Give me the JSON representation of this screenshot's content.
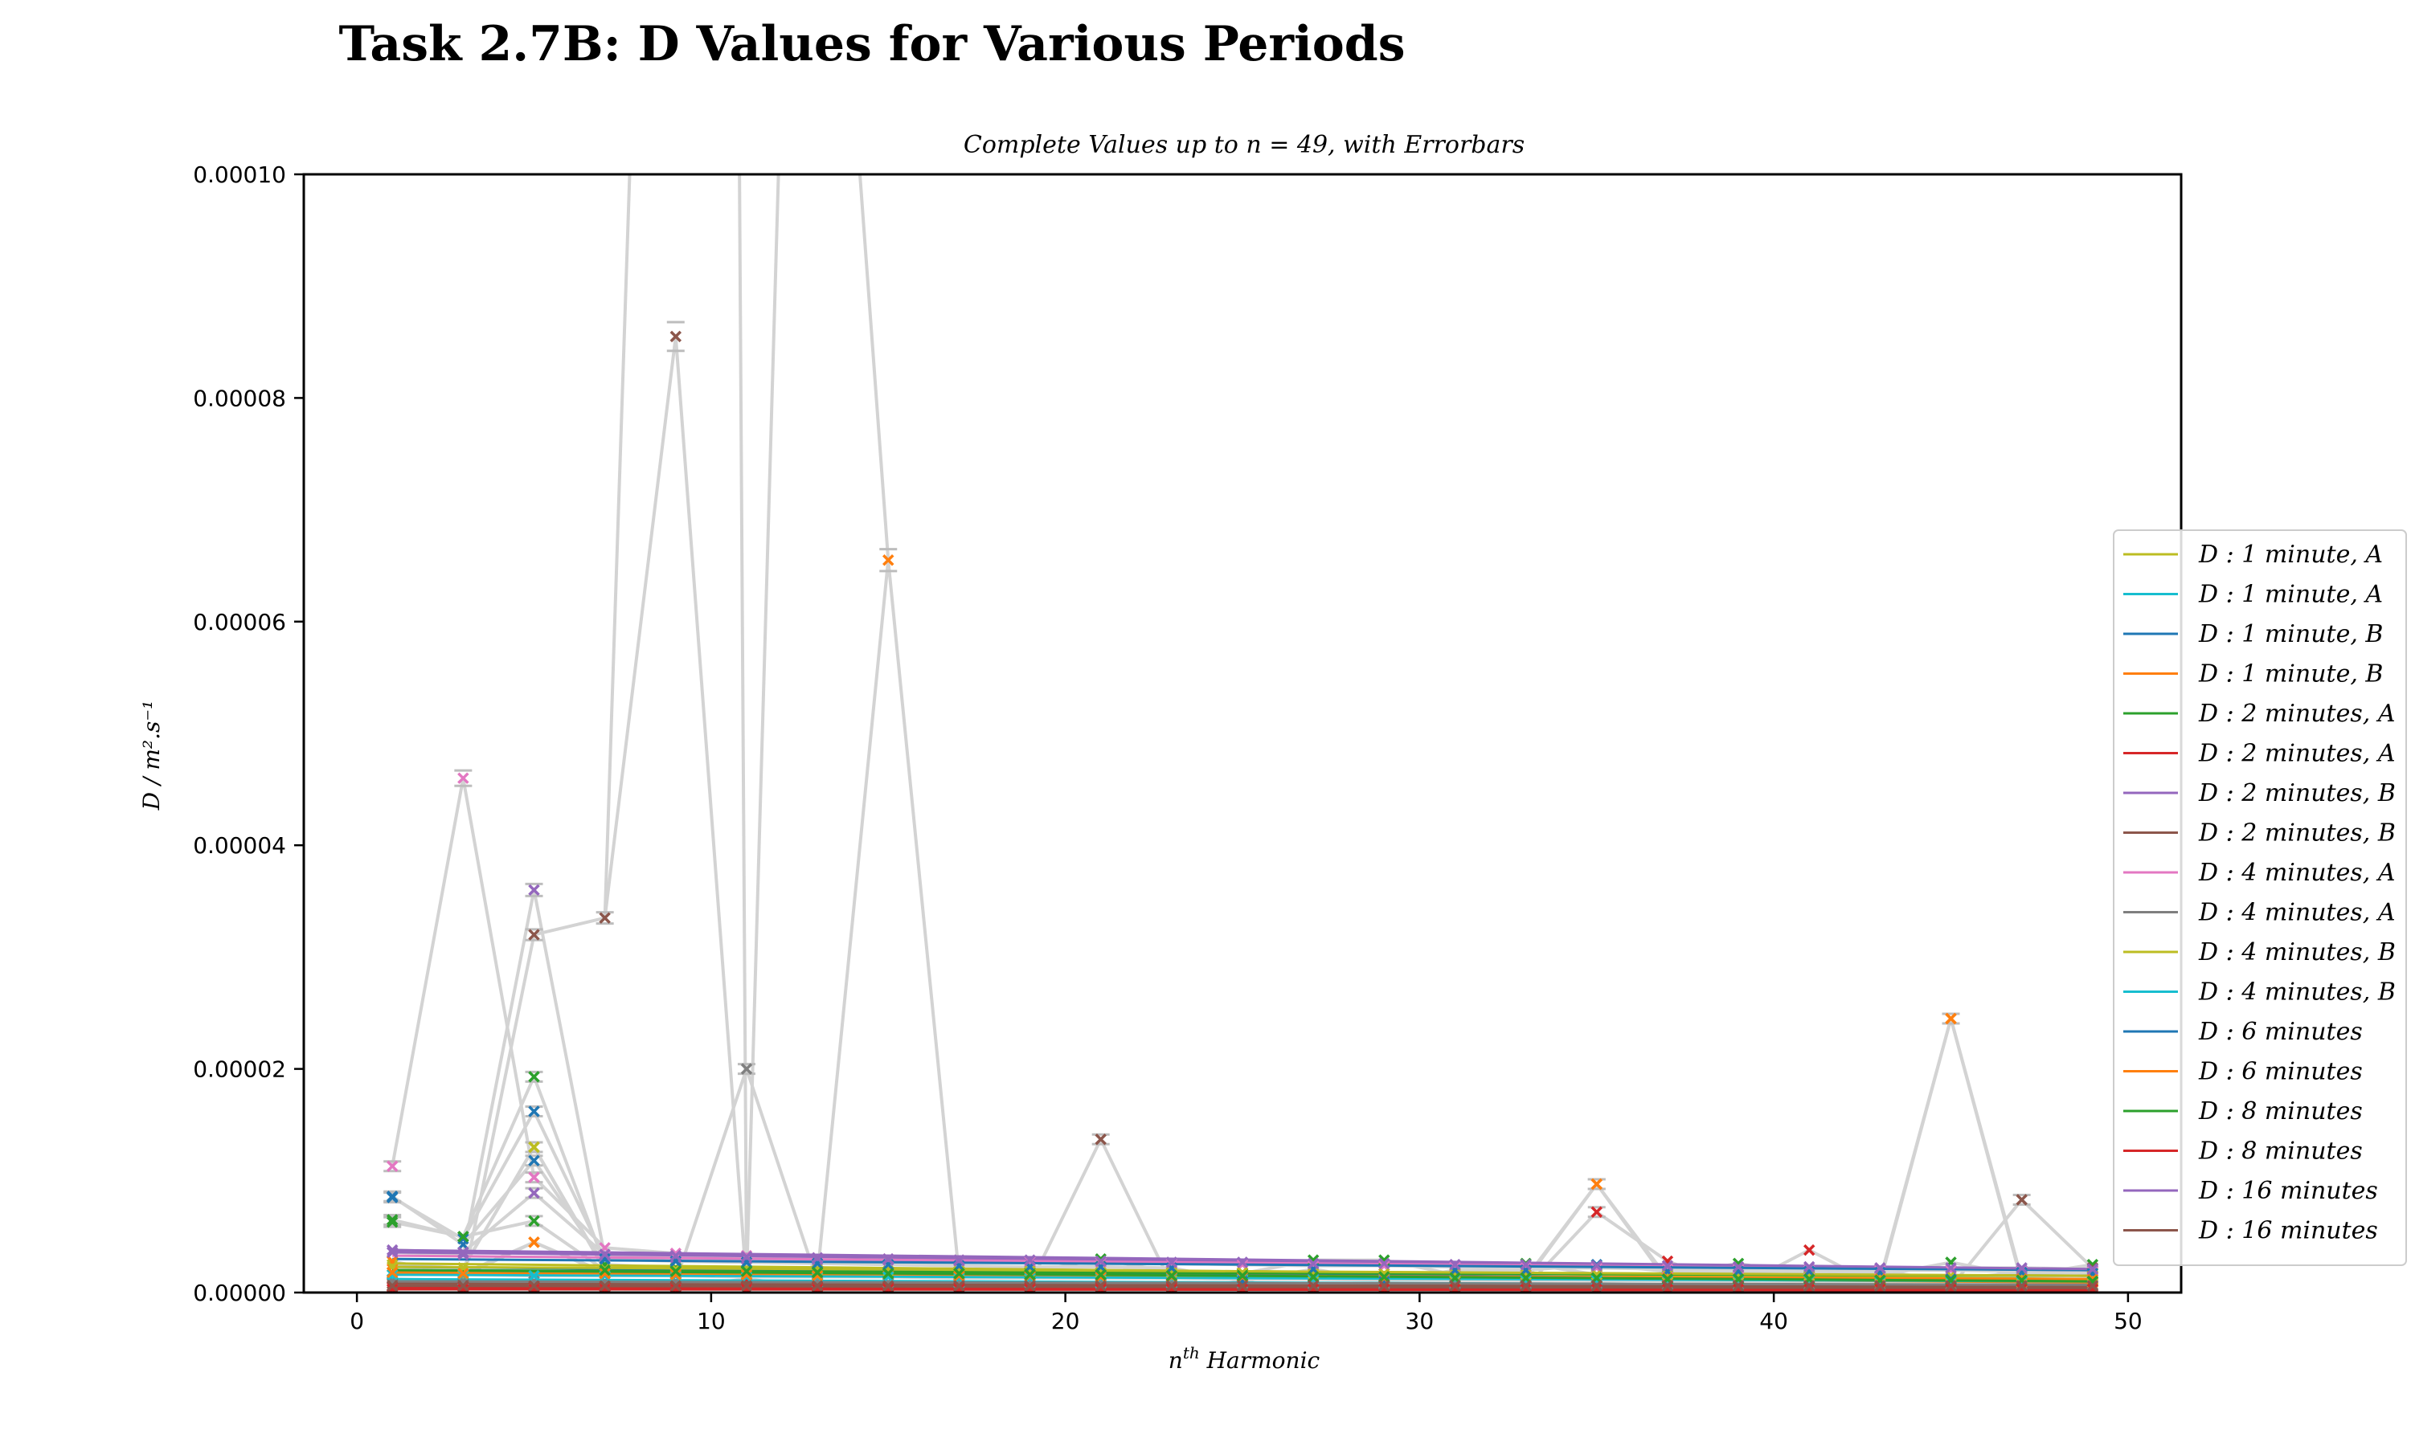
{
  "chart_data": {
    "type": "line",
    "title": "Task 2.7B: D Values for Various Periods",
    "subtitle": "Complete Values up to n = 49, with Errorbars",
    "xlabel": "n^th Harmonic",
    "ylabel": "D / m².s⁻¹",
    "xlim": [
      -1.5,
      51.5
    ],
    "ylim": [
      0,
      0.0001
    ],
    "x_ticks": [
      0,
      10,
      20,
      30,
      40,
      50
    ],
    "x_tick_labels": [
      "0",
      "10",
      "20",
      "30",
      "40",
      "50"
    ],
    "y_ticks": [
      0,
      2e-05,
      4e-05,
      6e-05,
      8e-05,
      0.0001
    ],
    "y_tick_labels": [
      "0.00000",
      "0.00002",
      "0.00004",
      "0.00006",
      "0.00008",
      "0.00010"
    ],
    "legend_position": "right",
    "grid": false,
    "errorbar_color": "#d3d3d3",
    "series": [
      {
        "name": "D : 1 minute, A",
        "color": "#bcbd22",
        "fit": [
          2.6e-06,
          1.2e-06
        ],
        "x": [
          1,
          3,
          5,
          7,
          9,
          11,
          13,
          15,
          17,
          19,
          21,
          23,
          25,
          27,
          29,
          31,
          33,
          35,
          37,
          39,
          41,
          43,
          45,
          47,
          49
        ],
        "y": [
          2.5e-06,
          2.2e-06,
          1.3e-05,
          2e-06,
          2e-06,
          1.8e-06,
          1.8e-06,
          1.7e-06,
          1.7e-06,
          1.6e-06,
          1.6e-06,
          1.5e-06,
          1.5e-06,
          1.4e-06,
          1.4e-06,
          1.4e-06,
          1.3e-06,
          1.3e-06,
          1.3e-06,
          1.2e-06,
          1.2e-06,
          1.2e-06,
          1.2e-06,
          1.1e-06,
          1.1e-06
        ]
      },
      {
        "name": "D : 1 minute, A",
        "color": "#17becf",
        "fit": [
          1.2e-06,
          6e-07
        ],
        "x": [
          1,
          3,
          5,
          7,
          9,
          11,
          13,
          15,
          17,
          19,
          21,
          23,
          25,
          27,
          29,
          31,
          33,
          35,
          37,
          39,
          41,
          43,
          45,
          47,
          49
        ],
        "y": [
          1.2e-06,
          1.1e-06,
          1e-06,
          1e-06,
          1e-06,
          9.5e-07,
          9e-07,
          9e-07,
          8.5e-07,
          8.5e-07,
          8e-07,
          8e-07,
          7.5e-07,
          7.5e-07,
          7e-07,
          7e-07,
          7e-07,
          6.5e-07,
          6.5e-07,
          6.5e-07,
          6e-07,
          6e-07,
          6e-07,
          6e-07,
          6e-07
        ]
      },
      {
        "name": "D : 1 minute, B",
        "color": "#1f77b4",
        "fit": [
          2.3e-06,
          1e-06
        ],
        "x": [
          1,
          3,
          5,
          7,
          9,
          11,
          13,
          15,
          17,
          19,
          21,
          23,
          25,
          27,
          29,
          31,
          33,
          35,
          37,
          39,
          41,
          43,
          45,
          47,
          49
        ],
        "y": [
          8.6e-06,
          4.3e-06,
          1.18e-05,
          2.5e-06,
          2e-06,
          1.9e-06,
          1.8e-06,
          1.8e-06,
          1.7e-06,
          1.6e-06,
          1.5e-06,
          1.5e-06,
          1.4e-06,
          1.3e-06,
          1.3e-06,
          1.2e-06,
          1.2e-06,
          1.1e-06,
          1.1e-06,
          1e-06,
          1e-06,
          1e-06,
          1e-06,
          9.5e-07,
          9.5e-07
        ]
      },
      {
        "name": "D : 1 minute, B",
        "color": "#ff7f0e",
        "fit": [
          2e-06,
          9e-07
        ],
        "x": [
          1,
          3,
          5,
          7,
          9,
          11,
          13,
          15,
          17,
          19,
          21,
          23,
          25,
          27,
          29,
          31,
          33,
          35,
          37,
          39,
          41,
          43,
          45,
          47,
          49
        ],
        "y": [
          2.8e-06,
          1.5e-06,
          4.5e-06,
          1.8e-06,
          1.7e-06,
          1.6e-06,
          1.5e-06,
          1.5e-06,
          1.4e-06,
          1.4e-06,
          1.3e-06,
          1.3e-06,
          1.2e-06,
          1.2e-06,
          1.1e-06,
          1.1e-06,
          1.1e-06,
          9.7e-06,
          1e-06,
          1e-06,
          1e-06,
          9.5e-07,
          2.45e-05,
          9e-07,
          9e-07
        ]
      },
      {
        "name": "D : 2 minutes, A",
        "color": "#2ca02c",
        "fit": [
          2e-06,
          1.5e-06
        ],
        "x": [
          1,
          3,
          5,
          7,
          9,
          11,
          13,
          15,
          17,
          19,
          21,
          23,
          25,
          27,
          29,
          31,
          33,
          35,
          37,
          39,
          41,
          43,
          45,
          47,
          49
        ],
        "y": [
          6.5e-06,
          5e-06,
          1.93e-05,
          2.5e-06,
          2.2e-06,
          2e-06,
          2e-06,
          1.9e-06,
          1.9e-06,
          1.8e-06,
          3e-06,
          1.8e-06,
          1.7e-06,
          2.9e-06,
          2.9e-06,
          1.6e-06,
          2.6e-06,
          1.6e-06,
          1.5e-06,
          2.6e-06,
          1.5e-06,
          1.5e-06,
          2.7e-06,
          1.5e-06,
          2.5e-06
        ]
      },
      {
        "name": "D : 2 minutes, A",
        "color": "#d62728",
        "fit": [
          5e-07,
          3e-07
        ],
        "x": [
          1,
          3,
          5,
          7,
          9,
          11,
          13,
          15,
          17,
          19,
          21,
          23,
          25,
          27,
          29,
          31,
          33,
          35,
          37,
          39,
          41,
          43,
          45,
          47,
          49
        ],
        "y": [
          5e-07,
          5e-07,
          5e-07,
          5e-07,
          5e-07,
          1.2e-06,
          5e-07,
          5e-07,
          5e-07,
          5e-07,
          5e-07,
          5e-07,
          5e-07,
          5e-07,
          5e-07,
          5e-07,
          5e-07,
          7.2e-06,
          2.8e-06,
          5e-07,
          3.8e-06,
          5e-07,
          5e-07,
          5e-07,
          5e-07
        ]
      },
      {
        "name": "D : 2 minutes, B",
        "color": "#9467bd",
        "fit": [
          3.6e-06,
          2e-06
        ],
        "x": [
          1,
          3,
          5,
          7,
          9,
          11,
          13,
          15,
          17,
          19,
          21,
          23,
          25,
          27,
          29,
          31,
          33,
          35,
          37,
          39,
          41,
          43,
          45,
          47,
          49
        ],
        "y": [
          3.6e-06,
          3.4e-06,
          3.6e-05,
          3.2e-06,
          3.1e-06,
          3e-06,
          2.9e-06,
          2.9e-06,
          2.8e-06,
          2.7e-06,
          2.7e-06,
          2.6e-06,
          2.5e-06,
          2.5e-06,
          2.4e-06,
          2.4e-06,
          2.3e-06,
          2.3e-06,
          2.2e-06,
          2.2e-06,
          2.1e-06,
          2.1e-06,
          2e-06,
          2e-06,
          2e-06
        ]
      },
      {
        "name": "D : 2 minutes, B",
        "color": "#8c564b",
        "fit": [
          8e-07,
          5e-07
        ],
        "x": [
          1,
          3,
          5,
          7,
          9,
          11,
          13,
          15,
          17,
          19,
          21,
          23,
          25,
          27,
          29,
          31,
          33,
          35,
          37,
          39,
          41,
          43,
          45,
          47,
          49
        ],
        "y": [
          8e-07,
          8e-07,
          3.2e-05,
          3.35e-05,
          8.55e-05,
          8e-07,
          8e-07,
          7e-07,
          7e-07,
          7e-07,
          1.37e-05,
          7e-07,
          7e-07,
          6e-07,
          6e-07,
          6e-07,
          6e-07,
          6e-07,
          6e-07,
          5e-07,
          5e-07,
          5e-07,
          5e-07,
          8.3e-06,
          2.2e-06
        ]
      },
      {
        "name": "D : 4 minutes, A",
        "color": "#e377c2",
        "fit": [
          3.3e-06,
          2e-06
        ],
        "x": [
          1,
          3,
          5,
          7,
          9,
          11,
          13,
          15,
          17,
          19,
          21,
          23,
          25,
          27,
          29,
          31,
          33,
          35,
          37,
          39,
          41,
          43,
          45,
          47,
          49
        ],
        "y": [
          1.13e-05,
          4.6e-05,
          1.03e-05,
          4e-06,
          3.5e-06,
          3.3e-06,
          3.1e-06,
          3e-06,
          2.9e-06,
          2.8e-06,
          2.7e-06,
          2.6e-06,
          2.5e-06,
          2.4e-06,
          2.4e-06,
          2.3e-06,
          2.2e-06,
          2.2e-06,
          2.1e-06,
          2.1e-06,
          2e-06,
          2e-06,
          2e-06,
          1.9e-06,
          1.9e-06
        ]
      },
      {
        "name": "D : 4 minutes, A",
        "color": "#7f7f7f",
        "fit": [
          1e-06,
          7e-07
        ],
        "x": [
          1,
          3,
          5,
          7,
          9,
          11,
          13,
          15,
          17,
          19,
          21,
          23,
          25,
          27,
          29,
          31,
          33,
          35,
          37,
          39,
          41,
          43,
          45,
          47,
          49
        ],
        "y": [
          1e-06,
          1e-06,
          1e-06,
          1e-06,
          1e-06,
          2e-05,
          1e-06,
          9e-07,
          9e-07,
          9e-07,
          9e-07,
          9e-07,
          8e-07,
          8e-07,
          8e-07,
          8e-07,
          8e-07,
          8e-07,
          7e-07,
          7e-07,
          7e-07,
          7e-07,
          7e-07,
          7e-07,
          7e-07
        ]
      },
      {
        "name": "D : 4 minutes, B",
        "color": "#bcbd22",
        "fit": [
          2.3e-06,
          1.5e-06
        ],
        "x": [
          1,
          3,
          5,
          7,
          9,
          11,
          13,
          15,
          17,
          19,
          21,
          23,
          25,
          27,
          29,
          31,
          33,
          35,
          37,
          39,
          41,
          43,
          45,
          47,
          49
        ],
        "y": [
          2.3e-06,
          2.2e-06,
          1.3e-05,
          2.1e-06,
          2.1e-06,
          2e-06,
          2e-06,
          1.9e-06,
          1.9e-06,
          1.9e-06,
          1.8e-06,
          1.8e-06,
          1.8e-06,
          1.7e-06,
          1.7e-06,
          1.7e-06,
          1.6e-06,
          1.6e-06,
          1.6e-06,
          1.6e-06,
          1.5e-06,
          1.5e-06,
          1.5e-06,
          1.5e-06,
          1.5e-06
        ]
      },
      {
        "name": "D : 4 minutes, B",
        "color": "#17becf",
        "fit": [
          1.6e-06,
          1e-06
        ],
        "x": [
          1,
          3,
          5,
          7,
          9,
          11,
          13,
          15,
          17,
          19,
          21,
          23,
          25,
          27,
          29,
          31,
          33,
          35,
          37,
          39,
          41,
          43,
          45,
          47,
          49
        ],
        "y": [
          1.6e-06,
          1.6e-06,
          1.5e-06,
          1.5e-06,
          1.5e-06,
          1.4e-06,
          1.4e-06,
          1.4e-06,
          1.3e-06,
          1.3e-06,
          1.3e-06,
          1.3e-06,
          1.2e-06,
          1.2e-06,
          1.2e-06,
          1.2e-06,
          1.1e-06,
          1.1e-06,
          1.1e-06,
          1.1e-06,
          1.1e-06,
          1e-06,
          1e-06,
          1e-06,
          1e-06
        ]
      },
      {
        "name": "D : 6 minutes",
        "color": "#1f77b4",
        "fit": [
          3e-06,
          2e-06
        ],
        "x": [
          1,
          3,
          5,
          7,
          9,
          11,
          13,
          15,
          17,
          19,
          21,
          23,
          25,
          27,
          29,
          31,
          33,
          35,
          37,
          39,
          41,
          43,
          45,
          47,
          49
        ],
        "y": [
          8.5e-06,
          4.8e-06,
          1.62e-05,
          3e-06,
          2.8e-06,
          2.7e-06,
          2.6e-06,
          2.5e-06,
          2.4e-06,
          2.3e-06,
          2.3e-06,
          2.2e-06,
          1e-06,
          2.1e-06,
          1e-06,
          2e-06,
          2e-06,
          2.5e-06,
          1.9e-06,
          1.9e-06,
          1.9e-06,
          1.8e-06,
          1.2e-06,
          1.8e-06,
          1.7e-06
        ]
      },
      {
        "name": "D : 6 minutes",
        "color": "#ff7f0e",
        "fit": [
          1.8e-06,
          1.2e-06
        ],
        "x": [
          1,
          3,
          5,
          7,
          9,
          11,
          13,
          15,
          17,
          19,
          21,
          23,
          25,
          27,
          29,
          31,
          33,
          35,
          37,
          39,
          41,
          43,
          45,
          47,
          49
        ],
        "y": [
          1.8e-06,
          1.7e-06,
          4.5e-06,
          1.7e-06,
          1.6e-06,
          1.6e-06,
          1.5e-06,
          6.55e-05,
          1.5e-06,
          1.5e-06,
          1.4e-06,
          1.4e-06,
          1.4e-06,
          1.4e-06,
          1.3e-06,
          1.3e-06,
          1.3e-06,
          9.7e-06,
          1.3e-06,
          1.2e-06,
          1.2e-06,
          1.2e-06,
          2.45e-05,
          1.2e-06,
          1.2e-06
        ]
      },
      {
        "name": "D : 8 minutes",
        "color": "#2ca02c",
        "fit": [
          2e-06,
          1e-06
        ],
        "x": [
          1,
          3,
          5,
          7,
          9,
          11,
          13,
          15,
          17,
          19,
          21,
          23,
          25,
          27,
          29,
          31,
          33,
          35,
          37,
          39,
          41,
          43,
          45,
          47,
          49
        ],
        "y": [
          6.3e-06,
          5e-06,
          6.4e-06,
          2e-06,
          1.9e-06,
          1.9e-06,
          1.8e-06,
          1.7e-06,
          1.7e-06,
          1.6e-06,
          1.6e-06,
          1.5e-06,
          1.5e-06,
          1.4e-06,
          1.4e-06,
          1.3e-06,
          1.3e-06,
          1.3e-06,
          1.2e-06,
          1.2e-06,
          1.2e-06,
          1.1e-06,
          1.1e-06,
          1.1e-06,
          1e-06
        ]
      },
      {
        "name": "D : 8 minutes",
        "color": "#d62728",
        "fit": [
          3e-07,
          2e-07
        ],
        "x": [
          1,
          3,
          5,
          7,
          9,
          11,
          13,
          15,
          17,
          19,
          21,
          23,
          25,
          27,
          29,
          31,
          33,
          35,
          37,
          39,
          41,
          43,
          45,
          47,
          49
        ],
        "y": [
          3e-07,
          3e-07,
          3e-07,
          3e-07,
          3e-07,
          3e-07,
          3e-07,
          3e-07,
          3e-07,
          3e-07,
          3e-07,
          3e-07,
          3e-07,
          3e-07,
          3e-07,
          3e-07,
          3e-07,
          3e-07,
          3e-07,
          3e-07,
          3e-07,
          3e-07,
          3e-07,
          3e-07,
          3e-07
        ]
      },
      {
        "name": "D : 16 minutes",
        "color": "#9467bd",
        "fit": [
          3.8e-06,
          2.1e-06
        ],
        "x": [
          1,
          3,
          5,
          7,
          9,
          11,
          13,
          15,
          17,
          19,
          21,
          23,
          25,
          27,
          29,
          31,
          33,
          35,
          37,
          39,
          41,
          43,
          45,
          47,
          49
        ],
        "y": [
          3.8e-06,
          3.6e-06,
          8.9e-06,
          3.4e-06,
          3.3e-06,
          3.2e-06,
          3.1e-06,
          3e-06,
          2.9e-06,
          2.9e-06,
          2.8e-06,
          2.7e-06,
          2.7e-06,
          2.6e-06,
          2.6e-06,
          2.5e-06,
          2.5e-06,
          2.4e-06,
          2.4e-06,
          2.3e-06,
          2.3e-06,
          2.2e-06,
          2.2e-06,
          2.2e-06,
          2.1e-06
        ]
      },
      {
        "name": "D : 16 minutes",
        "color": "#8c564b",
        "fit": [
          6e-07,
          4e-07
        ],
        "x": [
          1,
          3,
          5,
          7,
          9,
          11,
          13,
          15,
          17,
          19,
          21,
          23,
          25,
          27,
          29,
          31,
          33,
          35,
          37,
          39,
          41,
          43,
          45,
          47,
          49
        ],
        "y": [
          6e-07,
          6e-07,
          6e-07,
          6e-07,
          6e-07,
          6e-07,
          6e-07,
          6e-07,
          6e-07,
          6e-07,
          6e-07,
          6e-07,
          6e-07,
          6e-07,
          6e-07,
          6e-07,
          6e-07,
          6e-07,
          6e-07,
          6e-07,
          6e-07,
          6e-07,
          6e-07,
          6e-07,
          6e-07
        ]
      }
    ],
    "offscale_traces": [
      {
        "x": [
          7,
          7.7
        ],
        "y": [
          3.35e-05,
          0.0001
        ]
      },
      {
        "x": [
          11,
          10.8
        ],
        "y": [
          2e-06,
          0.0001
        ]
      },
      {
        "x": [
          11,
          11.9
        ],
        "y": [
          1e-06,
          0.0001
        ]
      },
      {
        "x": [
          15,
          14.2
        ],
        "y": [
          6.55e-05,
          0.0001
        ]
      }
    ]
  }
}
